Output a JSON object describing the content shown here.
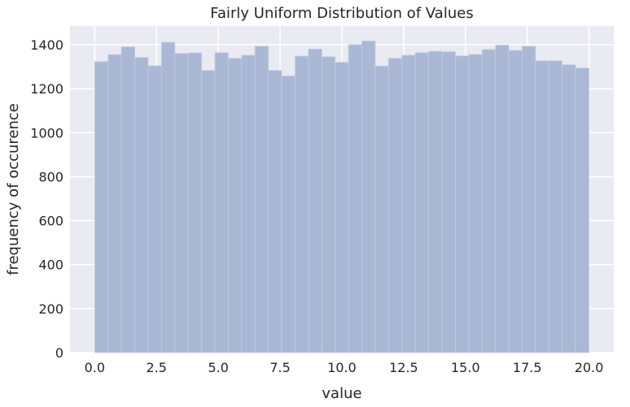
{
  "chart_data": {
    "type": "bar",
    "title": "Fairly Uniform Distribution of Values",
    "xlabel": "value",
    "ylabel": "frequency of occurence",
    "xlim": [
      -1.0,
      21.0
    ],
    "ylim": [
      0,
      1485
    ],
    "xticks": [
      0.0,
      2.5,
      5.0,
      7.5,
      10.0,
      12.5,
      15.0,
      17.5,
      20.0
    ],
    "xtick_labels": [
      "0.0",
      "2.5",
      "5.0",
      "7.5",
      "10.0",
      "12.5",
      "15.0",
      "17.5",
      "20.0"
    ],
    "yticks": [
      0,
      200,
      400,
      600,
      800,
      1000,
      1200,
      1400
    ],
    "ytick_labels": [
      "0",
      "200",
      "400",
      "600",
      "800",
      "1000",
      "1200",
      "1400"
    ],
    "grid": true,
    "bin_start": 0.0,
    "bin_width": 0.5405,
    "values": [
      1323,
      1355,
      1390,
      1342,
      1304,
      1411,
      1360,
      1363,
      1283,
      1364,
      1338,
      1352,
      1393,
      1283,
      1258,
      1348,
      1380,
      1345,
      1320,
      1400,
      1417,
      1303,
      1338,
      1352,
      1364,
      1370,
      1368,
      1349,
      1356,
      1378,
      1398,
      1374,
      1393,
      1327,
      1327,
      1309,
      1294
    ],
    "colors": {
      "bar": "#aab8d6",
      "background": "#eaeaf2",
      "grid": "#ffffff"
    }
  }
}
